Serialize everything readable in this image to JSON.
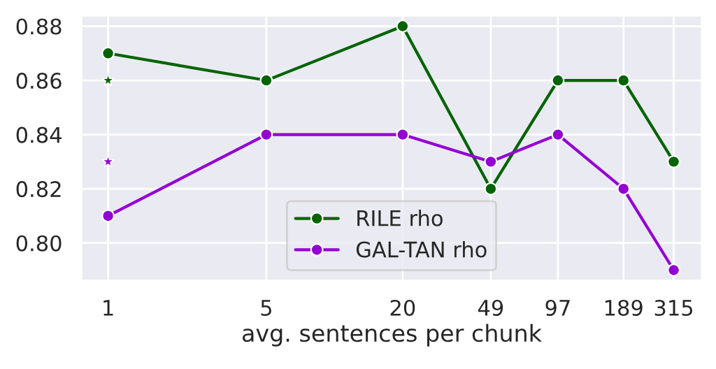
{
  "chart_data": {
    "type": "line",
    "xlabel": "avg. sentences per chunk",
    "log": "x",
    "x": [
      1,
      5,
      20,
      49,
      97,
      189,
      315
    ],
    "series": [
      {
        "name": "RILE rho",
        "color": "#006400",
        "values": [
          0.87,
          0.86,
          0.88,
          0.82,
          0.86,
          0.86,
          0.83
        ],
        "marker": "circle"
      },
      {
        "name": "GAL-TAN rho",
        "color": "#9400d3",
        "values": [
          0.81,
          0.84,
          0.84,
          0.83,
          0.84,
          0.82,
          0.79
        ],
        "marker": "circle"
      },
      {
        "type": "scatter",
        "color": "#006400",
        "x": [
          1
        ],
        "values": [
          0.86
        ],
        "marker": "star"
      },
      {
        "type": "scatter",
        "color": "#9400d3",
        "x": [
          1
        ],
        "values": [
          0.83
        ],
        "marker": "star"
      }
    ],
    "xlim": [
      0.76,
      420
    ],
    "ylim": [
      0.786,
      0.884
    ],
    "xticks": [
      1,
      5,
      20,
      49,
      97,
      189,
      315
    ],
    "yticks": [
      {
        "value": 0.8,
        "label": "0.80"
      },
      {
        "value": 0.82,
        "label": "0.82"
      },
      {
        "value": 0.84,
        "label": "0.84"
      },
      {
        "value": 0.86,
        "label": "0.86"
      },
      {
        "value": 0.88,
        "label": "0.88"
      }
    ],
    "grid": true,
    "legend": "bottom"
  }
}
